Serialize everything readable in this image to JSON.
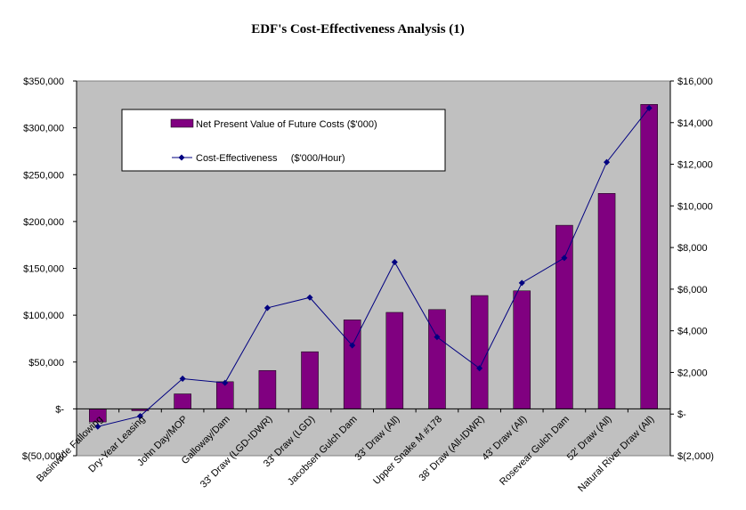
{
  "chart_data": {
    "type": "bar",
    "title": "EDF's Cost-Effectiveness Analysis (1)",
    "categories": [
      "Basinwide Fallowing",
      "Dry-Year Leasing",
      "John Day/MOP",
      "Galloway/Dam",
      "33' Draw (LGD-IDWR)",
      "33' Draw (LGD)",
      "Jacobsen Gulch Dam",
      "33' Draw (All)",
      "Upper Snake M #178",
      "38' Draw (All-IDWR)",
      "43' Draw (All)",
      "Rosevear Gulch Dam",
      "52' Draw (All)",
      "Natural River Draw (All)"
    ],
    "series": [
      {
        "name": "Net Present Value of Future Costs ($'000)",
        "kind": "bar",
        "axis": "left",
        "color": "#800080",
        "values": [
          -14000,
          -2000,
          16000,
          29000,
          41000,
          61000,
          95000,
          103000,
          106000,
          121000,
          126000,
          196000,
          230000,
          325000
        ]
      },
      {
        "name": "Cost-Effectiveness     ($'000/Hour)",
        "kind": "line",
        "axis": "right",
        "color": "#000080",
        "values": [
          -600,
          -100,
          1700,
          1500,
          5100,
          5600,
          3300,
          7300,
          3700,
          2200,
          6300,
          7500,
          12100,
          14700
        ]
      }
    ],
    "left_axis": {
      "ylim": [
        -50000,
        350000
      ],
      "ticks": [
        -50000,
        0,
        50000,
        100000,
        150000,
        200000,
        250000,
        300000,
        350000
      ],
      "tick_labels": [
        "$(50,000)",
        "$-",
        "$50,000",
        "$100,000",
        "$150,000",
        "$200,000",
        "$250,000",
        "$300,000",
        "$350,000"
      ]
    },
    "right_axis": {
      "ylim": [
        -2000,
        16000
      ],
      "ticks": [
        -2000,
        0,
        2000,
        4000,
        6000,
        8000,
        10000,
        12000,
        14000,
        16000
      ],
      "tick_labels": [
        "$(2,000)",
        "$-",
        "$2,000",
        "$4,000",
        "$6,000",
        "$8,000",
        "$10,000",
        "$12,000",
        "$14,000",
        "$16,000"
      ]
    },
    "plot_background": "#c0c0c0",
    "grid": false,
    "legend_position": "top-left inside"
  }
}
